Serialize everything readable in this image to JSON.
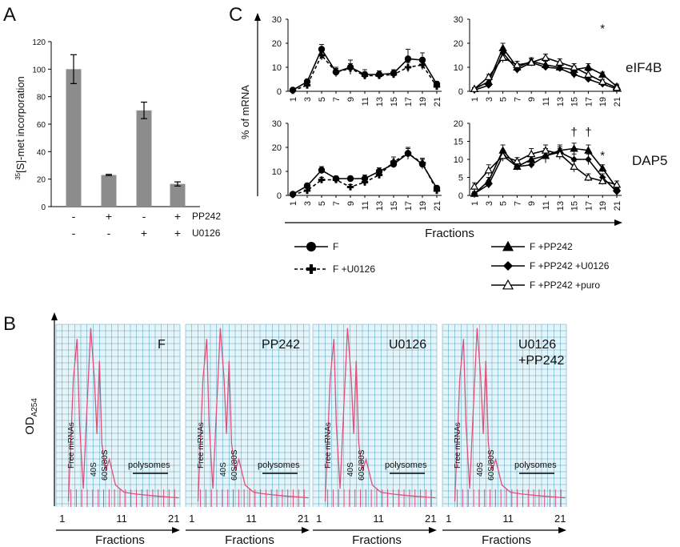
{
  "panel_labels": {
    "a": "A",
    "b": "B",
    "c": "C"
  },
  "chart_data": [
    {
      "panel": "A",
      "type": "bar",
      "ylabel": "35[S]-met incorporation",
      "ylabel_sup": "35",
      "ylabel_rest": "[S]-met incorporation",
      "ylim": [
        0,
        120
      ],
      "yticks": [
        "0",
        "20",
        "40",
        "60",
        "80",
        "100",
        "120"
      ],
      "categories": [
        "1",
        "2",
        "3",
        "4"
      ],
      "values": [
        100,
        23,
        70,
        16.5
      ],
      "errors": [
        10.5,
        0.5,
        6,
        1.5
      ],
      "treatment_rows": [
        {
          "label": "PP242",
          "marks": [
            "-",
            "+",
            "-",
            "+"
          ]
        },
        {
          "label": "U0126",
          "marks": [
            "-",
            "-",
            "+",
            "+"
          ]
        }
      ],
      "colors": {
        "bar": "#8c8c8c"
      }
    },
    {
      "panel": "C",
      "type": "line",
      "ylabel": "% of mRNA",
      "xlabel": "Fractions",
      "x_ticks": [
        "1",
        "3",
        "5",
        "7",
        "9",
        "11",
        "13",
        "15",
        "17",
        "19",
        "21"
      ],
      "row_labels": [
        "eIF4B",
        "DAP5"
      ],
      "subplots": [
        {
          "row": "eIF4B",
          "group": "left",
          "ylim": [
            0,
            30
          ],
          "yticks": [
            "0",
            "10",
            "20",
            "30"
          ],
          "series": [
            {
              "key": "F",
              "values": [
                0.5,
                4,
                17.5,
                8,
                10,
                7,
                7,
                7.5,
                13.5,
                13,
                3
              ],
              "errors": [
                0.5,
                1,
                2,
                2,
                3,
                2,
                1.5,
                1.5,
                4,
                3,
                1
              ]
            },
            {
              "key": "U",
              "values": [
                0.3,
                2.5,
                15,
                8,
                9.5,
                6.5,
                6.5,
                7,
                10,
                11,
                2
              ],
              "errors": [
                0.3,
                1,
                2,
                1.5,
                2,
                1.5,
                1,
                1,
                2,
                2,
                1
              ]
            }
          ],
          "marks": []
        },
        {
          "row": "eIF4B",
          "group": "right",
          "ylim": [
            0,
            30
          ],
          "yticks": [
            "0",
            "10",
            "20",
            "30"
          ],
          "series": [
            {
              "key": "T",
              "values": [
                1,
                4,
                18,
                10,
                12.5,
                11,
                10,
                9,
                10,
                7,
                2
              ],
              "errors": [
                0.5,
                1,
                2,
                1.5,
                1.5,
                1.5,
                1.5,
                1.5,
                1.5,
                1,
                1
              ]
            },
            {
              "key": "D",
              "values": [
                0.5,
                2.5,
                16,
                9,
                12,
                10,
                9.5,
                7,
                5,
                3,
                1
              ],
              "errors": [
                0.5,
                1,
                2,
                1.5,
                1.5,
                1,
                1,
                1.5,
                1,
                1,
                0.5
              ]
            },
            {
              "key": "O",
              "values": [
                1,
                6,
                14,
                11,
                12,
                14,
                12,
                10,
                7,
                4,
                1.5
              ],
              "errors": [
                0.5,
                1,
                2,
                1.5,
                1.5,
                1.5,
                1.5,
                1.5,
                1.5,
                1,
                1
              ]
            }
          ],
          "marks": [
            {
              "text": "*",
              "x": "19",
              "y": 24.5
            }
          ]
        },
        {
          "row": "DAP5",
          "group": "left",
          "ylim": [
            0,
            30
          ],
          "yticks": [
            "0",
            "10",
            "20",
            "30"
          ],
          "series": [
            {
              "key": "F",
              "values": [
                0.5,
                4,
                10.5,
                7,
                7,
                7,
                10,
                13,
                17.5,
                13,
                3
              ],
              "errors": [
                0.5,
                1,
                1.5,
                1,
                1,
                1.5,
                1.5,
                1.5,
                2,
                2,
                1
              ]
            },
            {
              "key": "U",
              "values": [
                0.3,
                2,
                6.5,
                6.5,
                3.5,
                5.5,
                8.5,
                14,
                17.5,
                13.5,
                2
              ],
              "errors": [
                0.3,
                1,
                1,
                1,
                1,
                1.5,
                1.5,
                2,
                2.5,
                2,
                1
              ]
            }
          ],
          "marks": []
        },
        {
          "row": "DAP5",
          "group": "right",
          "ylim": [
            0,
            20
          ],
          "yticks": [
            "0",
            "5",
            "10",
            "15",
            "20"
          ],
          "series": [
            {
              "key": "T",
              "values": [
                0.5,
                4,
                12.5,
                8,
                10,
                11,
                12.5,
                13,
                12.5,
                7.5,
                2
              ],
              "errors": [
                0.5,
                1,
                1.5,
                1,
                1.5,
                2,
                1.5,
                1.5,
                1.5,
                1,
                1
              ]
            },
            {
              "key": "D",
              "values": [
                0.5,
                3,
                11,
                8,
                8.5,
                11,
                12,
                10,
                10,
                5,
                1
              ],
              "errors": [
                0.5,
                1,
                1.5,
                1,
                1,
                1.5,
                1.5,
                1.5,
                1.5,
                1,
                0.5
              ]
            },
            {
              "key": "O",
              "values": [
                2.5,
                7,
                11,
                9.5,
                11.5,
                12.5,
                11.5,
                8,
                5,
                4,
                3
              ],
              "errors": [
                1,
                1.5,
                1.5,
                1,
                1.5,
                1.5,
                1.5,
                1.5,
                1,
                1,
                1
              ]
            }
          ],
          "marks": [
            {
              "text": "†",
              "x": "15",
              "y": 16.5
            },
            {
              "text": "†",
              "x": "17",
              "y": 16.5
            },
            {
              "text": "*",
              "x": "19",
              "y": 10
            }
          ]
        }
      ],
      "legend": [
        {
          "key": "F",
          "label": "F",
          "marker": "circle",
          "dashed": false
        },
        {
          "key": "U",
          "label": "F +U0126",
          "marker": "cross",
          "dashed": true
        },
        {
          "key": "T",
          "label": "F +PP242",
          "marker": "triangle",
          "dashed": false
        },
        {
          "key": "D",
          "label": "F +PP242 +U0126",
          "marker": "diamond",
          "dashed": false
        },
        {
          "key": "O",
          "label": "F +PP242 +puro",
          "marker": "triangle-open",
          "dashed": false
        }
      ]
    }
  ],
  "panel_b": {
    "ylabel": "OD",
    "ylabel_sub": "A254",
    "xlabel": "Fractions",
    "x_ticks": [
      "1",
      "11",
      "21"
    ],
    "peak_labels": [
      "Free mRNAs",
      "40S",
      "60S/80S"
    ],
    "polysomes_label": "polysomes",
    "profiles": [
      {
        "label_lines": [
          "F"
        ]
      },
      {
        "label_lines": [
          "PP242"
        ]
      },
      {
        "label_lines": [
          "U0126"
        ]
      },
      {
        "label_lines": [
          "U0126",
          "+PP242"
        ]
      }
    ],
    "colors": {
      "grid": "#4aa3c8",
      "paper": "#e6f4f8",
      "trace": "#e0507a"
    }
  }
}
